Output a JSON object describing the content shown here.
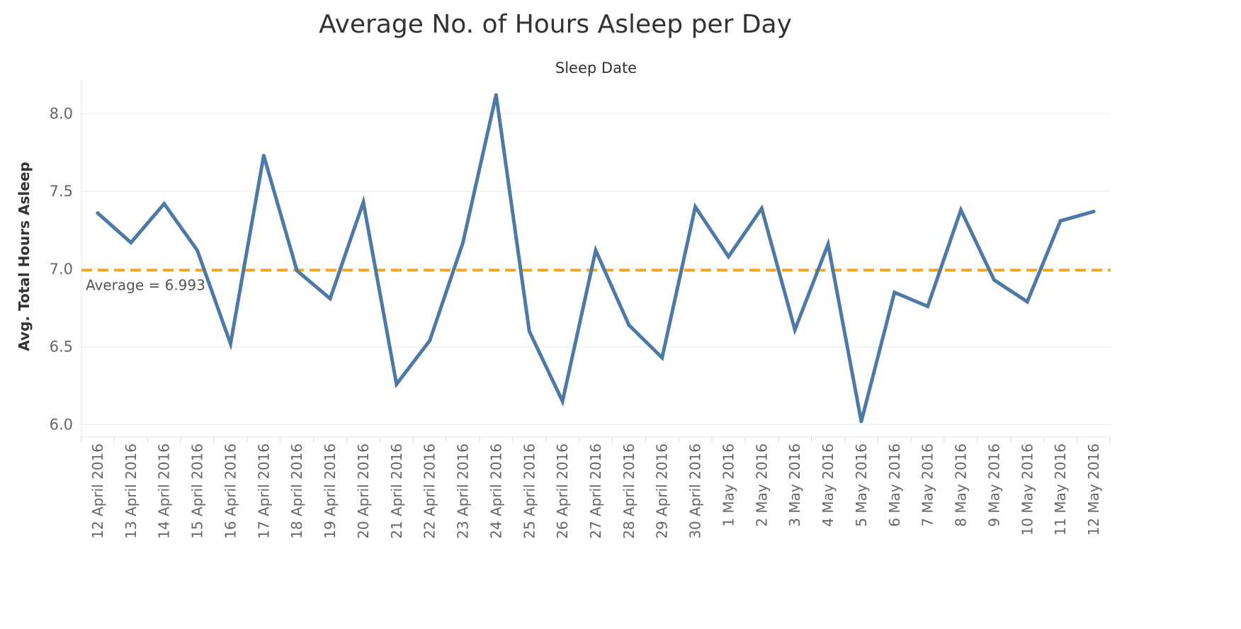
{
  "chart_data": {
    "type": "line",
    "title": "Average No. of Hours Asleep per Day",
    "x_header": "Sleep Date",
    "ylabel": "Avg. Total Hours Asleep",
    "ylim": [
      5.92,
      8.22
    ],
    "yticks": [
      6.0,
      6.5,
      7.0,
      7.5,
      8.0
    ],
    "ytick_labels": [
      "6.0",
      "6.5",
      "7.0",
      "7.5",
      "8.0"
    ],
    "grid": true,
    "categories": [
      "12 April 2016",
      "13 April 2016",
      "14 April 2016",
      "15 April 2016",
      "16 April 2016",
      "17 April 2016",
      "18 April 2016",
      "19 April 2016",
      "20 April 2016",
      "21 April 2016",
      "22 April 2016",
      "23 April 2016",
      "24 April 2016",
      "25 April 2016",
      "26 April 2016",
      "27 April 2016",
      "28 April 2016",
      "29 April 2016",
      "30 April 2016",
      "1 May 2016",
      "2 May 2016",
      "3 May 2016",
      "4 May 2016",
      "5 May 2016",
      "6 May 2016",
      "7 May 2016",
      "8 May 2016",
      "9 May 2016",
      "10 May 2016",
      "11 May 2016",
      "12 May 2016"
    ],
    "series": [
      {
        "values": [
          7.36,
          7.17,
          7.42,
          7.12,
          6.52,
          7.73,
          6.99,
          6.81,
          7.43,
          6.26,
          6.54,
          7.17,
          8.12,
          6.6,
          6.15,
          7.12,
          6.64,
          6.43,
          7.4,
          7.08,
          7.39,
          6.61,
          7.16,
          6.02,
          6.85,
          6.76,
          7.38,
          6.93,
          6.79,
          7.31,
          7.37
        ],
        "color": "#4e79a7"
      }
    ],
    "reference_line": {
      "value": 6.993,
      "label": "Average = 6.993",
      "color": "#f5a623"
    }
  }
}
